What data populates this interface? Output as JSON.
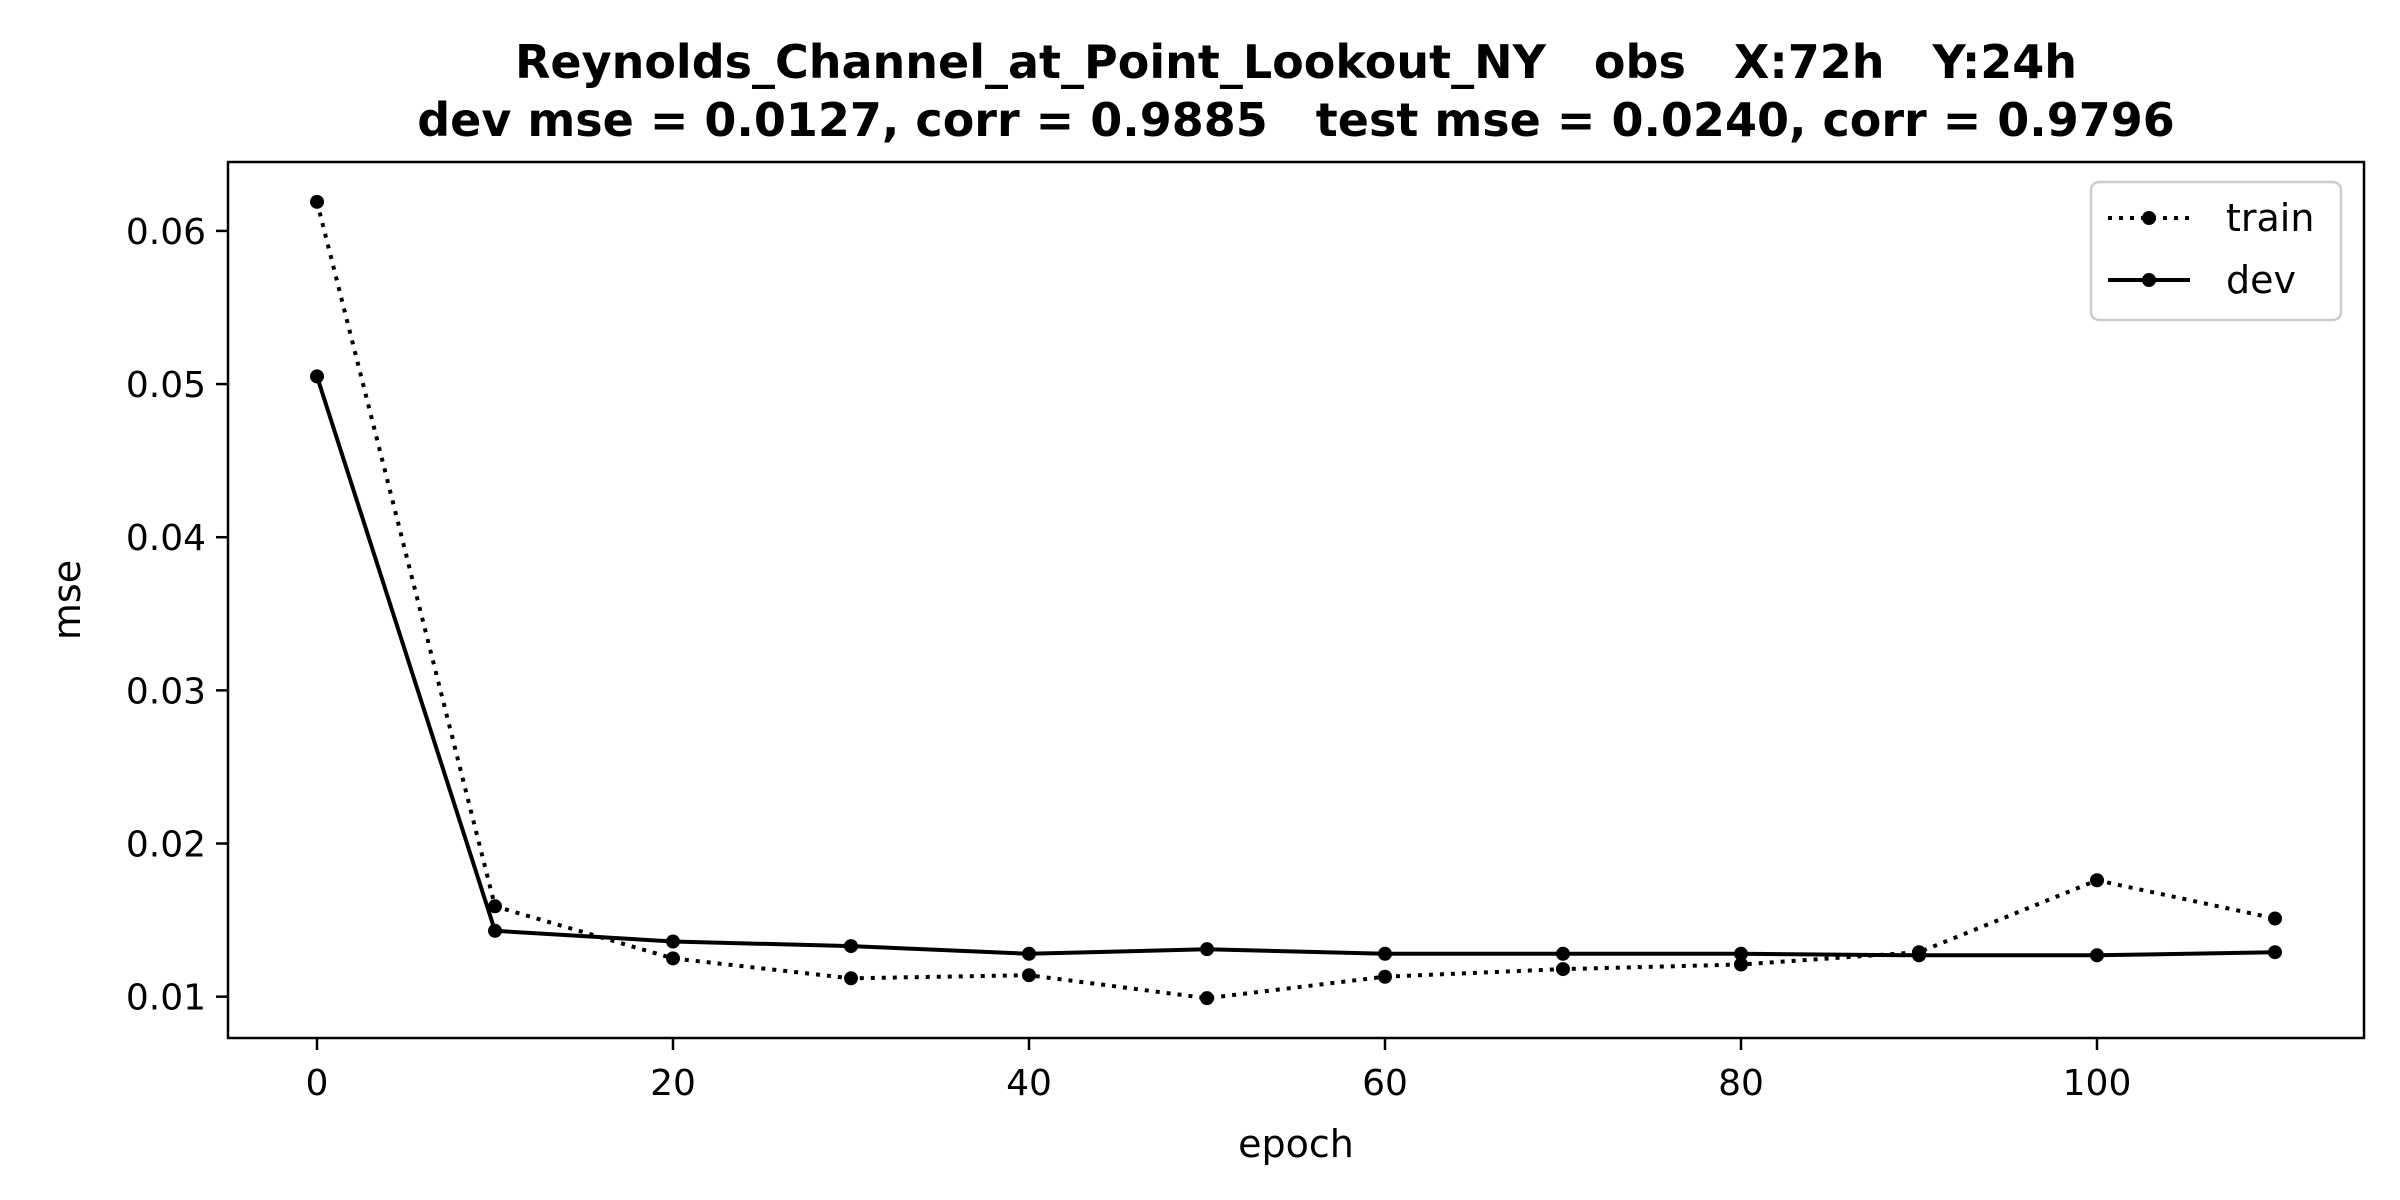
{
  "chart_data": {
    "type": "line",
    "title": "Reynolds_Channel_at_Point_Lookout_NY   obs   X:72h   Y:24h",
    "subtitle": "dev mse = 0.0127, corr = 0.9885   test mse = 0.0240, corr = 0.9796",
    "xlabel": "epoch",
    "ylabel": "mse",
    "xlim": [
      -5,
      115
    ],
    "ylim": [
      0.0073,
      0.0645
    ],
    "xticks": [
      0,
      20,
      40,
      60,
      80,
      100
    ],
    "yticks": [
      0.01,
      0.02,
      0.03,
      0.04,
      0.05,
      0.06
    ],
    "xtick_labels": [
      "0",
      "20",
      "40",
      "60",
      "80",
      "100"
    ],
    "ytick_labels": [
      "0.01",
      "0.02",
      "0.03",
      "0.04",
      "0.05",
      "0.06"
    ],
    "grid": false,
    "legend_position": "top-right",
    "x": [
      0,
      10,
      20,
      30,
      40,
      50,
      60,
      70,
      80,
      90,
      100,
      110
    ],
    "series": [
      {
        "name": "train",
        "style": "dotted",
        "marker": "circle",
        "color": "#000000",
        "values": [
          0.0619,
          0.0159,
          0.0125,
          0.0112,
          0.0114,
          0.0099,
          0.0113,
          0.0118,
          0.0121,
          0.0129,
          0.0176,
          0.0151
        ]
      },
      {
        "name": "dev",
        "style": "solid",
        "marker": "circle",
        "color": "#000000",
        "values": [
          0.0505,
          0.0143,
          0.0136,
          0.0133,
          0.0128,
          0.0131,
          0.0128,
          0.0128,
          0.0128,
          0.0127,
          0.0127,
          0.0129
        ]
      }
    ]
  }
}
